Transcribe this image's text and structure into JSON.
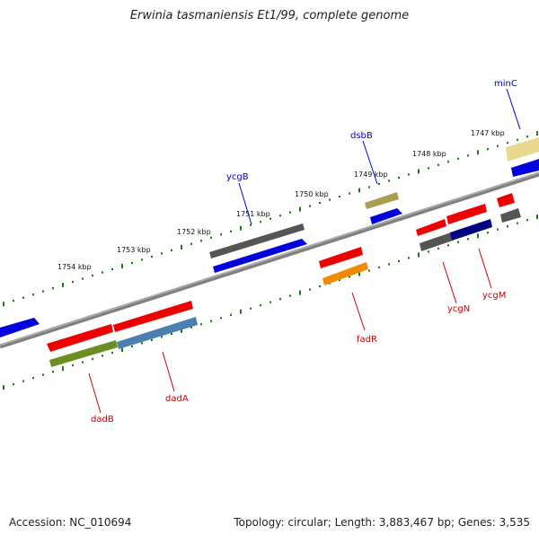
{
  "title": "Erwinia tasmaniensis Et1/99, complete genome",
  "footer": {
    "accession": "Accession: NC_010694",
    "topology": "Topology: circular; Length: 3,883,467 bp; Genes: 3,535"
  },
  "kbp_labels": [
    "1754 kbp",
    "1753 kbp",
    "1752 kbp",
    "1751 kbp",
    "1750 kbp",
    "1749 kbp",
    "1748 kbp",
    "1747 kbp"
  ],
  "genes_forward": [
    {
      "label": "ycgB",
      "color": "#0000ee"
    },
    {
      "label": "dsbB",
      "color": "#0000ee"
    },
    {
      "label": "minC",
      "color": "#0000ee"
    }
  ],
  "genes_reverse": [
    {
      "label": "dadB",
      "color": "#cc0000"
    },
    {
      "label": "dadA",
      "color": "#cc0000"
    },
    {
      "label": "fadR",
      "color": "#cc0000"
    },
    {
      "label": "ycgN",
      "color": "#cc0000"
    },
    {
      "label": "ycgM",
      "color": "#cc0000"
    }
  ]
}
